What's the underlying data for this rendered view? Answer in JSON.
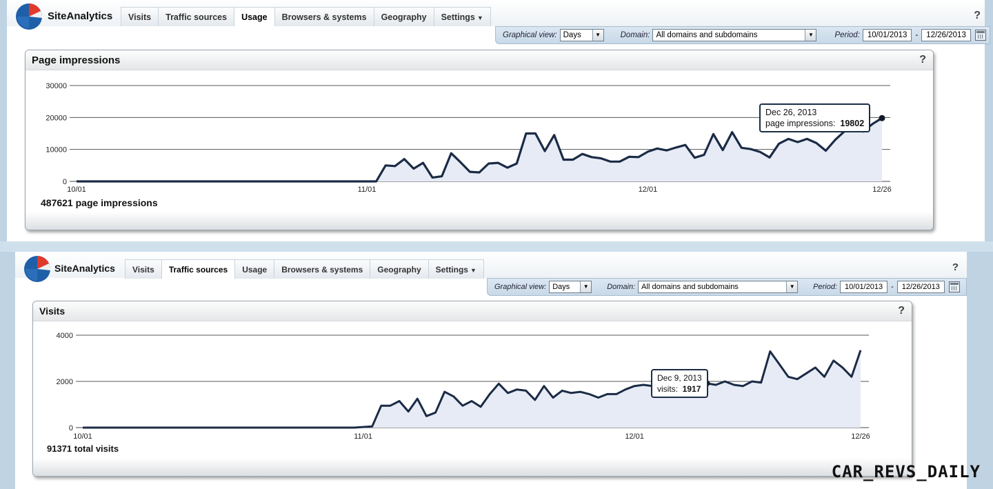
{
  "screens": [
    {
      "app_title": "SiteAnalytics",
      "tabs": [
        {
          "label": "Visits"
        },
        {
          "label": "Traffic sources"
        },
        {
          "label": "Usage",
          "active": true
        },
        {
          "label": "Browsers & systems"
        },
        {
          "label": "Geography"
        },
        {
          "label": "Settings"
        }
      ],
      "help": "?",
      "filters": {
        "graphical_view_label": "Graphical view:",
        "graphical_view_value": "Days",
        "domain_label": "Domain:",
        "domain_value": "All domains and subdomains",
        "period_label": "Period:",
        "period_from": "10/01/2013",
        "period_sep": "-",
        "period_to": "12/26/2013"
      },
      "panel": {
        "title": "Page impressions",
        "help": "?",
        "total_text": "487621 page impressions",
        "tooltip": {
          "date": "Dec 26, 2013",
          "label": "page impressions:",
          "value": "19802"
        }
      },
      "chart_data": {
        "type": "area",
        "series": [
          {
            "name": "page impressions"
          }
        ],
        "xlabels": [
          "10/01",
          "11/01",
          "12/01",
          "12/26"
        ],
        "ylim": [
          0,
          30000
        ],
        "yticks": [
          0,
          10000,
          20000,
          30000
        ],
        "grid": true,
        "x_days": [
          0,
          31,
          34,
          36,
          38,
          40,
          42,
          44,
          46,
          48,
          50,
          52,
          54,
          56,
          58,
          60,
          62,
          64,
          66,
          68,
          70,
          72,
          74,
          76,
          78,
          80,
          82,
          84,
          86,
          88,
          90,
          92,
          94,
          96,
          98,
          100,
          102,
          104,
          106,
          108,
          110,
          112,
          114,
          116,
          118,
          120,
          122,
          124,
          126,
          128,
          130,
          132,
          134,
          136,
          138,
          140,
          142,
          144,
          146,
          148,
          150,
          152,
          154,
          156,
          158,
          160,
          162,
          164,
          166,
          168,
          170,
          172,
          174,
          176,
          178,
          180,
          182
        ],
        "values": [
          0,
          0,
          0,
          0,
          0,
          0,
          0,
          0,
          0,
          0,
          0,
          0,
          0,
          0,
          0,
          0,
          0,
          0,
          0,
          0,
          0,
          0,
          0,
          0,
          0,
          0,
          0,
          0,
          0,
          0,
          0,
          0,
          0,
          0,
          0,
          0,
          0,
          0,
          0,
          0,
          0,
          0,
          0,
          0,
          0,
          0,
          0,
          0,
          0,
          0,
          0,
          0,
          0,
          0,
          0,
          0,
          0,
          0,
          0,
          0,
          0,
          0,
          0,
          0,
          0,
          0,
          0,
          0,
          0,
          0,
          0,
          0,
          0,
          0,
          0,
          0,
          0
        ],
        "points": [
          [
            "10/01",
            0
          ],
          [
            "10/31",
            0
          ],
          [
            "11/02",
            0
          ],
          [
            "11/03",
            5000
          ],
          [
            "11/04",
            4800
          ],
          [
            "11/05",
            7000
          ],
          [
            "11/06",
            4000
          ],
          [
            "11/07",
            5800
          ],
          [
            "11/08",
            1200
          ],
          [
            "11/09",
            1600
          ],
          [
            "11/10",
            8800
          ],
          [
            "11/11",
            6000
          ],
          [
            "11/12",
            3000
          ],
          [
            "11/13",
            2800
          ],
          [
            "11/14",
            5600
          ],
          [
            "11/15",
            5800
          ],
          [
            "11/16",
            4300
          ],
          [
            "11/17",
            5600
          ],
          [
            "11/18",
            15000
          ],
          [
            "11/19",
            15000
          ],
          [
            "11/20",
            9500
          ],
          [
            "11/21",
            14500
          ],
          [
            "11/22",
            6800
          ],
          [
            "11/23",
            6800
          ],
          [
            "11/24",
            8600
          ],
          [
            "11/25",
            7600
          ],
          [
            "11/26",
            7200
          ],
          [
            "11/27",
            6200
          ],
          [
            "11/28",
            6200
          ],
          [
            "11/29",
            7700
          ],
          [
            "11/30",
            7600
          ],
          [
            "12/01",
            9300
          ],
          [
            "12/02",
            10300
          ],
          [
            "12/03",
            9700
          ],
          [
            "12/04",
            10600
          ],
          [
            "12/05",
            11400
          ],
          [
            "12/06",
            7400
          ],
          [
            "12/07",
            8300
          ],
          [
            "12/08",
            14800
          ],
          [
            "12/09",
            9800
          ],
          [
            "12/10",
            15400
          ],
          [
            "12/11",
            10500
          ],
          [
            "12/12",
            10100
          ],
          [
            "12/13",
            9200
          ],
          [
            "12/14",
            7500
          ],
          [
            "12/15",
            11800
          ],
          [
            "12/16",
            13300
          ],
          [
            "12/17",
            12300
          ],
          [
            "12/18",
            13300
          ],
          [
            "12/19",
            12000
          ],
          [
            "12/20",
            9600
          ],
          [
            "12/21",
            13000
          ],
          [
            "12/22",
            15700
          ],
          [
            "12/23",
            17600
          ],
          [
            "12/24",
            15600
          ],
          [
            "12/25",
            18000
          ],
          [
            "12/26",
            19802
          ]
        ]
      }
    },
    {
      "app_title": "SiteAnalytics",
      "tabs": [
        {
          "label": "Visits"
        },
        {
          "label": "Traffic sources",
          "active": true
        },
        {
          "label": "Usage"
        },
        {
          "label": "Browsers & systems"
        },
        {
          "label": "Geography"
        },
        {
          "label": "Settings"
        }
      ],
      "help": "?",
      "filters": {
        "graphical_view_label": "Graphical view:",
        "graphical_view_value": "Days",
        "domain_label": "Domain:",
        "domain_value": "All domains and subdomains",
        "period_label": "Period:",
        "period_from": "10/01/2013",
        "period_sep": "-",
        "period_to": "12/26/2013"
      },
      "panel": {
        "title": "Visits",
        "help": "?",
        "total_text": "91371 total visits",
        "tooltip": {
          "date": "Dec 9, 2013",
          "label": "visits:",
          "value": "1917"
        }
      },
      "chart_data": {
        "type": "area",
        "series": [
          {
            "name": "visits"
          }
        ],
        "xlabels": [
          "10/01",
          "11/01",
          "12/01",
          "12/26"
        ],
        "ylim": [
          0,
          4000
        ],
        "yticks": [
          0,
          2000,
          4000
        ],
        "grid": true,
        "points": [
          [
            "10/01",
            0
          ],
          [
            "10/31",
            0
          ],
          [
            "11/02",
            50
          ],
          [
            "11/03",
            950
          ],
          [
            "11/04",
            950
          ],
          [
            "11/05",
            1150
          ],
          [
            "11/06",
            700
          ],
          [
            "11/07",
            1250
          ],
          [
            "11/08",
            500
          ],
          [
            "11/09",
            650
          ],
          [
            "11/10",
            1550
          ],
          [
            "11/11",
            1350
          ],
          [
            "11/12",
            950
          ],
          [
            "11/13",
            1150
          ],
          [
            "11/14",
            900
          ],
          [
            "11/15",
            1450
          ],
          [
            "11/16",
            1900
          ],
          [
            "11/17",
            1500
          ],
          [
            "11/18",
            1650
          ],
          [
            "11/19",
            1600
          ],
          [
            "11/20",
            1200
          ],
          [
            "11/21",
            1800
          ],
          [
            "11/22",
            1300
          ],
          [
            "11/23",
            1600
          ],
          [
            "11/24",
            1500
          ],
          [
            "11/25",
            1550
          ],
          [
            "11/26",
            1450
          ],
          [
            "11/27",
            1300
          ],
          [
            "11/28",
            1450
          ],
          [
            "11/29",
            1450
          ],
          [
            "11/30",
            1650
          ],
          [
            "12/01",
            1800
          ],
          [
            "12/02",
            1850
          ],
          [
            "12/03",
            1800
          ],
          [
            "12/04",
            1700
          ],
          [
            "12/05",
            1900
          ],
          [
            "12/06",
            1850
          ],
          [
            "12/07",
            1950
          ],
          [
            "12/08",
            1900
          ],
          [
            "12/09",
            1917
          ],
          [
            "12/10",
            1850
          ],
          [
            "12/11",
            2000
          ],
          [
            "12/12",
            1850
          ],
          [
            "12/13",
            1800
          ],
          [
            "12/14",
            2000
          ],
          [
            "12/15",
            1950
          ],
          [
            "12/16",
            3300
          ],
          [
            "12/17",
            2750
          ],
          [
            "12/18",
            2200
          ],
          [
            "12/19",
            2100
          ],
          [
            "12/20",
            2350
          ],
          [
            "12/21",
            2600
          ],
          [
            "12/22",
            2200
          ],
          [
            "12/23",
            2900
          ],
          [
            "12/24",
            2600
          ],
          [
            "12/25",
            2200
          ],
          [
            "12/26",
            3350
          ]
        ]
      }
    }
  ],
  "watermark": "CAR_REVS_DAILY"
}
